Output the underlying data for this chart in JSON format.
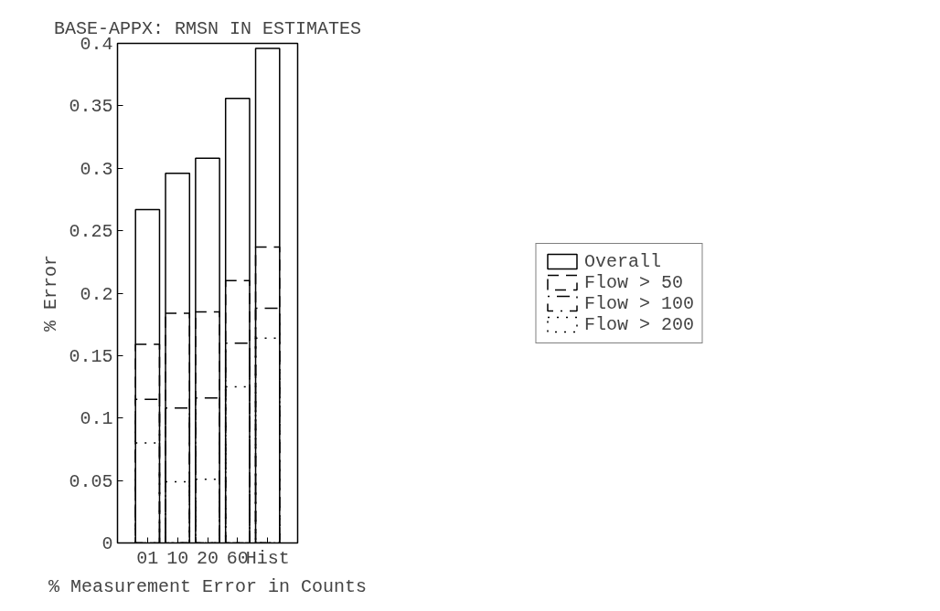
{
  "chart_data": {
    "type": "bar",
    "title": "BASE-APPX: RMSN IN ESTIMATES",
    "xlabel": "% Measurement Error in Counts",
    "ylabel": "% Error",
    "categories": [
      "01",
      "10",
      "20",
      "60",
      "Hist"
    ],
    "series": [
      {
        "name": "Overall",
        "color": "#000000",
        "line_style": "solid",
        "values": [
          0.267,
          0.296,
          0.308,
          0.356,
          0.396
        ]
      },
      {
        "name": "Flow > 50",
        "color": "#000000",
        "line_style": "dashed",
        "values": [
          0.159,
          0.184,
          0.185,
          0.21,
          0.237
        ]
      },
      {
        "name": "Flow > 100",
        "color": "#000000",
        "line_style": "dashdot",
        "values": [
          0.115,
          0.108,
          0.116,
          0.16,
          0.188
        ]
      },
      {
        "name": "Flow > 200",
        "color": "#000000",
        "line_style": "dotted",
        "values": [
          0.08,
          0.049,
          0.051,
          0.125,
          0.164
        ]
      }
    ],
    "ylim": [
      0,
      0.4
    ],
    "yticks": [
      0,
      0.05,
      0.1,
      0.15,
      0.2,
      0.25,
      0.3,
      0.35,
      0.4
    ],
    "grid": false,
    "legend": "right"
  }
}
